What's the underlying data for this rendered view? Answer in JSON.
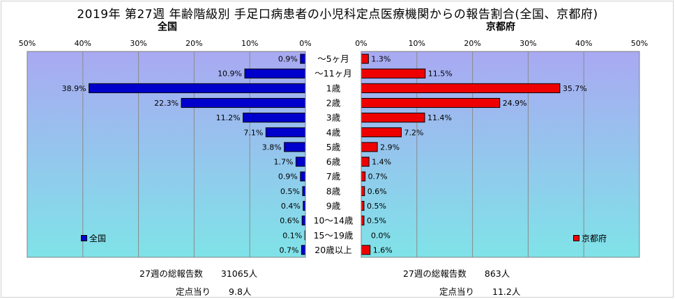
{
  "title": "2019年 第27週 年齢階級別 手足口病患者の小児科定点医療機関からの報告割合(全国、京都府)",
  "colors": {
    "national": "#0000cc",
    "kyoto": "#ee0000",
    "bg_top": "#a9a9f2",
    "bg_bottom": "#7fe3e8"
  },
  "chart_data": {
    "type": "bar",
    "orientation": "horizontal-butterfly",
    "categories": [
      "～5ヶ月",
      "～11ヶ月",
      "1歳",
      "2歳",
      "3歳",
      "4歳",
      "5歳",
      "6歳",
      "7歳",
      "8歳",
      "9歳",
      "10～14歳",
      "15～19歳",
      "20歳以上"
    ],
    "series": [
      {
        "name": "全国",
        "side": "left",
        "color": "#0000cc",
        "values": [
          0.9,
          10.9,
          38.9,
          22.3,
          11.2,
          7.1,
          3.8,
          1.7,
          0.9,
          0.5,
          0.4,
          0.6,
          0.1,
          0.7
        ],
        "labels": [
          "0.9%",
          "10.9%",
          "38.9%",
          "22.3%",
          "11.2%",
          "7.1%",
          "3.8%",
          "1.7%",
          "0.9%",
          "0.5%",
          "0.4%",
          "0.6%",
          "0.1%",
          "0.7%"
        ]
      },
      {
        "name": "京都府",
        "side": "right",
        "color": "#ee0000",
        "values": [
          1.3,
          11.5,
          35.7,
          24.9,
          11.4,
          7.2,
          2.9,
          1.4,
          0.7,
          0.6,
          0.5,
          0.5,
          0.0,
          1.6
        ],
        "labels": [
          "1.3%",
          "11.5%",
          "35.7%",
          "24.9%",
          "11.4%",
          "7.2%",
          "2.9%",
          "1.4%",
          "0.7%",
          "0.6%",
          "0.5%",
          "0.5%",
          "0.0%",
          "1.6%"
        ]
      }
    ],
    "left_axis": {
      "title": "全国",
      "ticks": [
        "50%",
        "40%",
        "30%",
        "20%",
        "10%",
        "0%"
      ],
      "range": [
        0,
        50
      ],
      "reversed": true
    },
    "right_axis": {
      "title": "京都府",
      "ticks": [
        "0%",
        "10%",
        "20%",
        "30%",
        "40%",
        "50%"
      ],
      "range": [
        0,
        50
      ]
    },
    "grid": true,
    "legend": {
      "national": "全国",
      "kyoto": "京都府"
    }
  },
  "stats": {
    "national": {
      "total_label": "27週の総報告数",
      "total_value": "31065人",
      "per_label": "定点当り",
      "per_value": "9.8人"
    },
    "kyoto": {
      "total_label": "27週の総報告数",
      "total_value": "863人",
      "per_label": "定点当り",
      "per_value": "11.2人"
    }
  }
}
